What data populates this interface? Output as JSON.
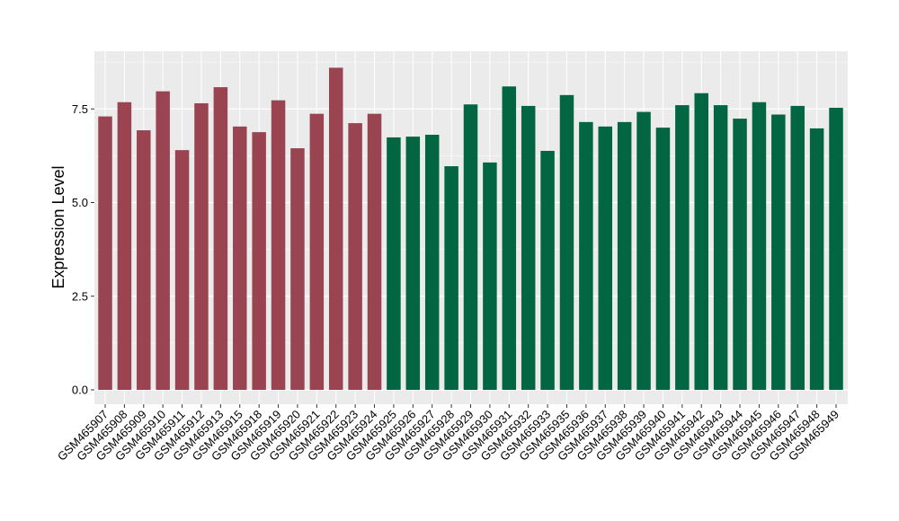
{
  "chart_data": {
    "type": "bar",
    "ylabel": "Expression Level",
    "xlabel": "",
    "ylim": [
      0,
      9.0
    ],
    "yticks": [
      0.0,
      2.5,
      5.0,
      7.5
    ],
    "ytick_labels": [
      "0.0",
      "2.5",
      "5.0",
      "7.5"
    ],
    "grid": true,
    "categories": [
      "GSM465907",
      "GSM465908",
      "GSM465909",
      "GSM465910",
      "GSM465911",
      "GSM465912",
      "GSM465913",
      "GSM465915",
      "GSM465918",
      "GSM465919",
      "GSM465920",
      "GSM465921",
      "GSM465922",
      "GSM465923",
      "GSM465924",
      "GSM465925",
      "GSM465926",
      "GSM465927",
      "GSM465928",
      "GSM465929",
      "GSM465930",
      "GSM465931",
      "GSM465932",
      "GSM465933",
      "GSM465935",
      "GSM465936",
      "GSM465937",
      "GSM465938",
      "GSM465939",
      "GSM465940",
      "GSM465941",
      "GSM465942",
      "GSM465943",
      "GSM465944",
      "GSM465945",
      "GSM465946",
      "GSM465947",
      "GSM465948",
      "GSM465949"
    ],
    "values": [
      7.3,
      7.68,
      6.93,
      7.97,
      6.4,
      7.65,
      8.08,
      7.03,
      6.88,
      7.73,
      6.45,
      7.37,
      8.6,
      7.12,
      7.37,
      6.74,
      6.76,
      6.81,
      5.97,
      7.62,
      6.07,
      8.1,
      7.58,
      6.38,
      7.87,
      7.15,
      7.03,
      7.15,
      7.42,
      7.0,
      7.6,
      7.92,
      7.6,
      7.24,
      7.68,
      7.35,
      7.58,
      6.98,
      7.53
    ],
    "groups": [
      1,
      1,
      1,
      1,
      1,
      1,
      1,
      1,
      1,
      1,
      1,
      1,
      1,
      1,
      1,
      2,
      2,
      2,
      2,
      2,
      2,
      2,
      2,
      2,
      2,
      2,
      2,
      2,
      2,
      2,
      2,
      2,
      2,
      2,
      2,
      2,
      2,
      2,
      2
    ],
    "colors": {
      "1": "#9a4452",
      "2": "#026643"
    },
    "panel_background": "#ebebeb",
    "gridline_color": "#ffffff"
  }
}
